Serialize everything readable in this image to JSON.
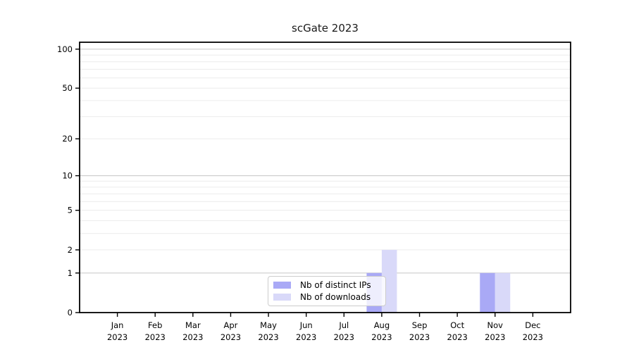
{
  "chart_data": {
    "type": "bar",
    "title": "scGate 2023",
    "categories": [
      "Jan 2023",
      "Feb 2023",
      "Mar 2023",
      "Apr 2023",
      "May 2023",
      "Jun 2023",
      "Jul 2023",
      "Aug 2023",
      "Sep 2023",
      "Oct 2023",
      "Nov 2023",
      "Dec 2023"
    ],
    "series": [
      {
        "name": "Nb of distinct IPs",
        "color": "#a9a9f6",
        "values": [
          0,
          0,
          0,
          0,
          0,
          0,
          0,
          1,
          0,
          0,
          1,
          0
        ]
      },
      {
        "name": "Nb of downloads",
        "color": "#d9d9f9",
        "values": [
          0,
          0,
          0,
          0,
          0,
          0,
          0,
          2,
          0,
          0,
          1,
          0
        ]
      }
    ],
    "yticks": [
      0,
      1,
      2,
      5,
      10,
      20,
      50,
      100
    ],
    "ylim": [
      0,
      113
    ],
    "yscale": "log1p",
    "grid": "horizontal",
    "legend_position": "lower-center",
    "colors": {
      "axis": "#000000",
      "grid_major": "#cccccc",
      "grid_minor": "#ececec",
      "background": "#ffffff"
    }
  }
}
